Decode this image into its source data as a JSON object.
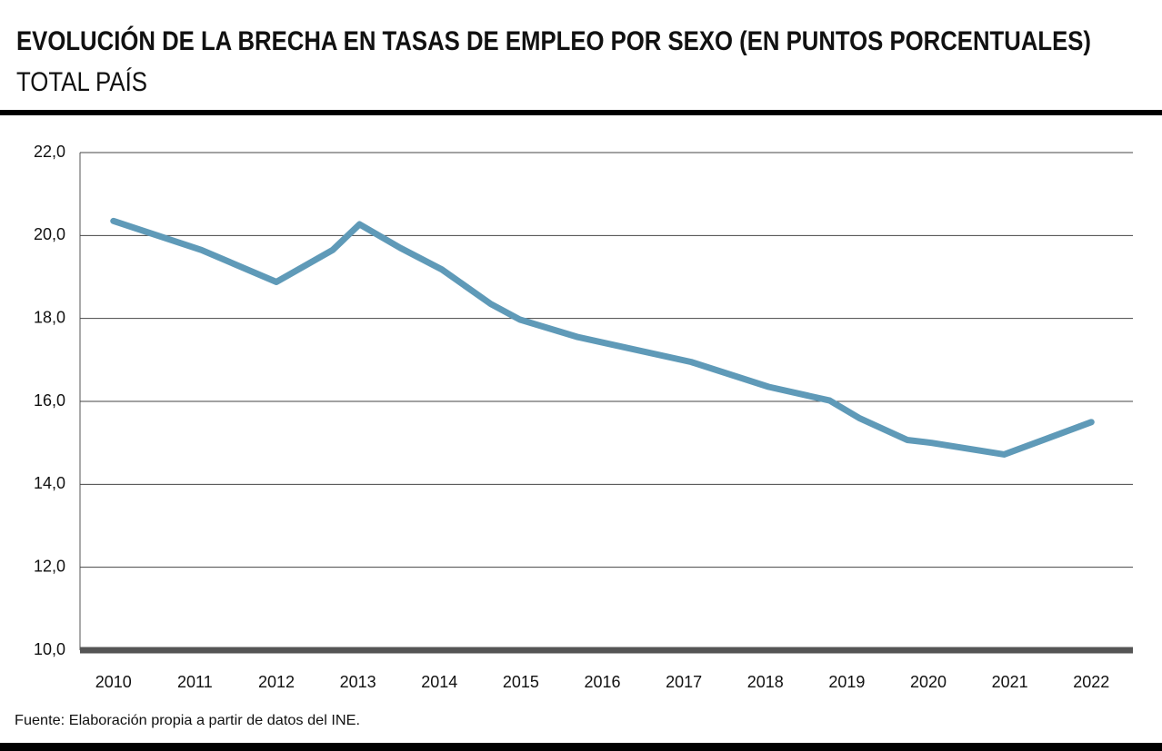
{
  "chart_data": {
    "type": "line",
    "title": "EVOLUCIÓN DE LA BRECHA EN TASAS DE EMPLEO POR SEXO (EN PUNTOS PORCENTUALES)",
    "subtitle": "TOTAL PAÍS",
    "source": "Fuente: Elaboración propia a partir de datos del INE.",
    "x": [
      2010.0,
      2011.08,
      2012.0,
      2012.69,
      2013.02,
      2013.52,
      2014.03,
      2014.63,
      2014.99,
      2015.7,
      2017.09,
      2018.04,
      2018.79,
      2019.15,
      2019.74,
      2020.04,
      2020.93,
      2022.0
    ],
    "series": [
      {
        "name": "Brecha",
        "color": "#5f9ab8",
        "values": [
          20.35,
          19.65,
          18.88,
          19.65,
          20.27,
          19.7,
          19.18,
          18.35,
          17.97,
          17.55,
          16.95,
          16.35,
          16.02,
          15.6,
          15.07,
          15.0,
          14.72,
          15.5
        ]
      }
    ],
    "xlim": [
      2009.59,
      2022.51
    ],
    "xticks": [
      2010,
      2011,
      2012,
      2013,
      2014,
      2015,
      2016,
      2017,
      2018,
      2019,
      2020,
      2021,
      2022
    ],
    "ylim": [
      10,
      22
    ],
    "yticks": [
      {
        "value": 10,
        "label": "10,0"
      },
      {
        "value": 12,
        "label": "12,0"
      },
      {
        "value": 14,
        "label": "14,0"
      },
      {
        "value": 16,
        "label": "16,0"
      },
      {
        "value": 18,
        "label": "18,0"
      },
      {
        "value": 20,
        "label": "20,0"
      },
      {
        "value": 22,
        "label": "22,0"
      }
    ],
    "grid": true
  }
}
